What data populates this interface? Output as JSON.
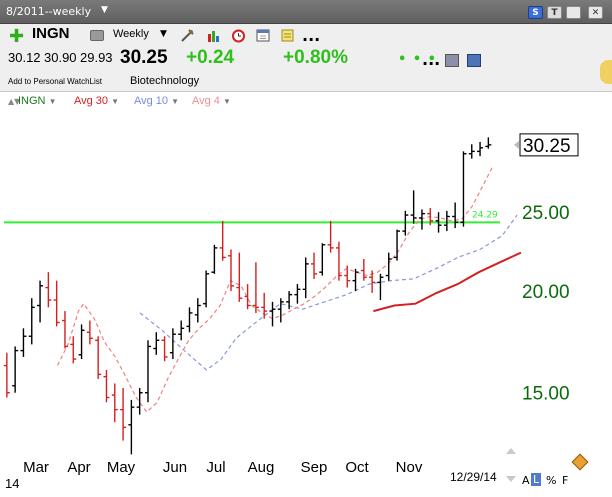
{
  "window": {
    "title": "8/2011--weekly"
  },
  "toolbar": {
    "symbol": "INGN",
    "period": "Weekly",
    "ellipsis": "...",
    "open": "30.12",
    "high": "30.90",
    "low": "29.93",
    "close": "30.25",
    "change": "+0.24",
    "change_pct": "+0.80%",
    "watchlist_link": "Add to Personal WatchList",
    "industry": "Biotechnology",
    "buttons": {
      "s": "S",
      "t": "T"
    }
  },
  "legend": {
    "symbol": "INGN",
    "avg30": "Avg 30",
    "avg10": "Avg 10",
    "avg4": "Avg 4"
  },
  "footer": {
    "a": "A",
    "l": "L",
    "pct": "%",
    "f": "F",
    "date": "12/29/14",
    "year": "14"
  },
  "colors": {
    "up_bar": "#000000",
    "down_bar": "#d42020",
    "avg30": "#d42020",
    "avg10": "#8a96e0",
    "avg4": "#f08080",
    "hline": "#33ee33",
    "axis_text": "#0b6b0b",
    "change": "#2fbf1e"
  },
  "chart_data": {
    "type": "ohlc",
    "price_label": "30.25",
    "yticks": [
      "25.00",
      "20.00",
      "15.00"
    ],
    "ytick_values": [
      25,
      20,
      15
    ],
    "ylim": [
      12.4,
      33.2
    ],
    "x_labels": [
      "Mar",
      "Apr",
      "May",
      "Jun",
      "Jul",
      "Aug",
      "Sep",
      "Oct",
      "Nov"
    ],
    "horizontal_line": {
      "value": 24.29,
      "label": "24.29"
    },
    "weeks": [
      {
        "o": 16.2,
        "h": 16.8,
        "l": 14.8,
        "c": 15.0,
        "dir": "down"
      },
      {
        "o": 15.3,
        "h": 17.1,
        "l": 15.0,
        "c": 16.9,
        "dir": "up"
      },
      {
        "o": 16.9,
        "h": 18.0,
        "l": 16.6,
        "c": 17.6,
        "dir": "up"
      },
      {
        "o": 17.6,
        "h": 19.6,
        "l": 17.2,
        "c": 19.1,
        "dir": "up"
      },
      {
        "o": 19.2,
        "h": 20.6,
        "l": 18.3,
        "c": 20.3,
        "dir": "up"
      },
      {
        "o": 20.2,
        "h": 21.1,
        "l": 19.1,
        "c": 19.5,
        "dir": "down"
      },
      {
        "o": 19.5,
        "h": 20.6,
        "l": 18.1,
        "c": 18.3,
        "dir": "down"
      },
      {
        "o": 18.4,
        "h": 18.9,
        "l": 17.0,
        "c": 17.1,
        "dir": "down"
      },
      {
        "o": 17.2,
        "h": 17.6,
        "l": 16.3,
        "c": 16.5,
        "dir": "down"
      },
      {
        "o": 16.7,
        "h": 18.2,
        "l": 16.5,
        "c": 17.9,
        "dir": "up"
      },
      {
        "o": 17.8,
        "h": 18.4,
        "l": 17.2,
        "c": 17.5,
        "dir": "down"
      },
      {
        "o": 17.4,
        "h": 17.6,
        "l": 15.6,
        "c": 15.8,
        "dir": "down"
      },
      {
        "o": 15.7,
        "h": 16.0,
        "l": 14.6,
        "c": 14.8,
        "dir": "down"
      },
      {
        "o": 14.9,
        "h": 15.4,
        "l": 13.8,
        "c": 14.3,
        "dir": "down"
      },
      {
        "o": 14.3,
        "h": 15.2,
        "l": 13.1,
        "c": 13.6,
        "dir": "down"
      },
      {
        "o": 13.7,
        "h": 14.7,
        "l": 12.6,
        "c": 14.4,
        "dir": "up"
      },
      {
        "o": 14.4,
        "h": 15.2,
        "l": 14.1,
        "c": 15.0,
        "dir": "up"
      },
      {
        "o": 15.0,
        "h": 17.4,
        "l": 14.6,
        "c": 17.1,
        "dir": "up"
      },
      {
        "o": 17.0,
        "h": 17.8,
        "l": 16.7,
        "c": 17.4,
        "dir": "up"
      },
      {
        "o": 17.4,
        "h": 17.6,
        "l": 16.4,
        "c": 16.6,
        "dir": "down"
      },
      {
        "o": 16.8,
        "h": 18.0,
        "l": 16.5,
        "c": 17.7,
        "dir": "up"
      },
      {
        "o": 17.7,
        "h": 18.4,
        "l": 17.4,
        "c": 18.0,
        "dir": "up"
      },
      {
        "o": 18.1,
        "h": 19.1,
        "l": 17.8,
        "c": 18.8,
        "dir": "up"
      },
      {
        "o": 18.7,
        "h": 19.6,
        "l": 18.3,
        "c": 19.2,
        "dir": "up"
      },
      {
        "o": 19.3,
        "h": 21.2,
        "l": 19.1,
        "c": 21.0,
        "dir": "up"
      },
      {
        "o": 21.1,
        "h": 22.8,
        "l": 21.0,
        "c": 22.6,
        "dir": "up"
      },
      {
        "o": 22.6,
        "h": 24.4,
        "l": 21.8,
        "c": 22.0,
        "dir": "down"
      },
      {
        "o": 22.1,
        "h": 22.5,
        "l": 20.0,
        "c": 20.3,
        "dir": "down"
      },
      {
        "o": 20.2,
        "h": 22.3,
        "l": 19.4,
        "c": 19.6,
        "dir": "down"
      },
      {
        "o": 19.7,
        "h": 20.4,
        "l": 19.0,
        "c": 19.2,
        "dir": "down"
      },
      {
        "o": 19.2,
        "h": 21.7,
        "l": 18.8,
        "c": 19.1,
        "dir": "down"
      },
      {
        "o": 19.1,
        "h": 19.9,
        "l": 18.5,
        "c": 18.9,
        "dir": "down"
      },
      {
        "o": 18.9,
        "h": 19.4,
        "l": 18.1,
        "c": 19.0,
        "dir": "up"
      },
      {
        "o": 19.0,
        "h": 19.6,
        "l": 18.3,
        "c": 19.4,
        "dir": "up"
      },
      {
        "o": 19.4,
        "h": 20.0,
        "l": 19.0,
        "c": 19.8,
        "dir": "up"
      },
      {
        "o": 19.8,
        "h": 20.4,
        "l": 19.3,
        "c": 20.1,
        "dir": "up"
      },
      {
        "o": 20.1,
        "h": 22.0,
        "l": 19.6,
        "c": 21.6,
        "dir": "up"
      },
      {
        "o": 21.6,
        "h": 22.3,
        "l": 20.7,
        "c": 21.0,
        "dir": "down"
      },
      {
        "o": 21.1,
        "h": 22.9,
        "l": 20.9,
        "c": 22.8,
        "dir": "up"
      },
      {
        "o": 22.8,
        "h": 24.4,
        "l": 22.3,
        "c": 22.6,
        "dir": "down"
      },
      {
        "o": 22.6,
        "h": 23.0,
        "l": 20.6,
        "c": 20.9,
        "dir": "down"
      },
      {
        "o": 20.9,
        "h": 21.5,
        "l": 20.2,
        "c": 20.6,
        "dir": "down"
      },
      {
        "o": 20.6,
        "h": 21.3,
        "l": 20.0,
        "c": 21.1,
        "dir": "up"
      },
      {
        "o": 21.2,
        "h": 21.9,
        "l": 20.6,
        "c": 20.8,
        "dir": "down"
      },
      {
        "o": 20.8,
        "h": 21.2,
        "l": 19.9,
        "c": 20.5,
        "dir": "down"
      },
      {
        "o": 20.5,
        "h": 21.0,
        "l": 19.5,
        "c": 20.8,
        "dir": "up"
      },
      {
        "o": 20.9,
        "h": 22.3,
        "l": 20.6,
        "c": 21.9,
        "dir": "up"
      },
      {
        "o": 22.0,
        "h": 23.8,
        "l": 21.8,
        "c": 23.7,
        "dir": "up"
      },
      {
        "o": 23.7,
        "h": 25.1,
        "l": 23.4,
        "c": 24.8,
        "dir": "up"
      },
      {
        "o": 24.8,
        "h": 26.6,
        "l": 24.2,
        "c": 24.6,
        "dir": "up"
      },
      {
        "o": 24.6,
        "h": 25.2,
        "l": 23.8,
        "c": 24.9,
        "dir": "up"
      },
      {
        "o": 24.9,
        "h": 25.3,
        "l": 24.1,
        "c": 24.4,
        "dir": "down"
      },
      {
        "o": 24.4,
        "h": 25.0,
        "l": 23.6,
        "c": 24.1,
        "dir": "up"
      },
      {
        "o": 24.1,
        "h": 25.1,
        "l": 23.7,
        "c": 24.7,
        "dir": "up"
      },
      {
        "o": 24.7,
        "h": 25.7,
        "l": 23.9,
        "c": 24.3,
        "dir": "up"
      },
      {
        "o": 24.3,
        "h": 29.7,
        "l": 24.0,
        "c": 29.5,
        "dir": "up"
      },
      {
        "o": 29.5,
        "h": 30.3,
        "l": 29.1,
        "c": 29.7,
        "dir": "up"
      },
      {
        "o": 29.7,
        "h": 30.5,
        "l": 29.3,
        "c": 30.0,
        "dir": "up"
      },
      {
        "o": 30.12,
        "h": 30.9,
        "l": 29.93,
        "c": 30.25,
        "dir": "up"
      }
    ],
    "avg30": [
      {
        "w": 45,
        "v": 18.9
      },
      {
        "w": 48,
        "v": 19.2
      },
      {
        "w": 51,
        "v": 19.3
      },
      {
        "w": 54,
        "v": 19.9
      },
      {
        "w": 57,
        "v": 20.4
      },
      {
        "w": 60,
        "v": 21.1
      },
      {
        "w": 63,
        "v": 21.7
      },
      {
        "w": 66,
        "v": 22.3
      }
    ],
    "avg10": [
      {
        "w": 15,
        "v": 18.8
      },
      {
        "w": 18,
        "v": 17.9
      },
      {
        "w": 21,
        "v": 16.9
      },
      {
        "w": 24,
        "v": 16.0
      },
      {
        "w": 26,
        "v": 16.5
      },
      {
        "w": 28,
        "v": 17.5
      },
      {
        "w": 31,
        "v": 18.4
      },
      {
        "w": 34,
        "v": 19.3
      },
      {
        "w": 37,
        "v": 19.0
      },
      {
        "w": 40,
        "v": 19.4
      },
      {
        "w": 43,
        "v": 19.8
      },
      {
        "w": 46,
        "v": 20.4
      },
      {
        "w": 49,
        "v": 20.6
      },
      {
        "w": 52,
        "v": 20.7
      },
      {
        "w": 55,
        "v": 21.3
      },
      {
        "w": 58,
        "v": 22.0
      },
      {
        "w": 61,
        "v": 22.5
      },
      {
        "w": 64,
        "v": 23.4
      },
      {
        "w": 66,
        "v": 24.8
      }
    ],
    "avg4": [
      {
        "w": 10,
        "v": 16.2
      },
      {
        "w": 12,
        "v": 17.2
      },
      {
        "w": 14,
        "v": 18.9
      },
      {
        "w": 15,
        "v": 19.3
      },
      {
        "w": 17,
        "v": 18.5
      },
      {
        "w": 19,
        "v": 17.3
      },
      {
        "w": 21,
        "v": 16.6
      },
      {
        "w": 23,
        "v": 15.7
      },
      {
        "w": 25,
        "v": 14.8
      },
      {
        "w": 27,
        "v": 14.2
      },
      {
        "w": 29,
        "v": 14.6
      },
      {
        "w": 31,
        "v": 15.6
      },
      {
        "w": 33,
        "v": 16.5
      },
      {
        "w": 35,
        "v": 17.4
      },
      {
        "w": 37,
        "v": 18.0
      },
      {
        "w": 39,
        "v": 18.5
      },
      {
        "w": 41,
        "v": 19.2
      },
      {
        "w": 43,
        "v": 20.6
      },
      {
        "w": 45,
        "v": 20.3
      },
      {
        "w": 47,
        "v": 19.2
      },
      {
        "w": 49,
        "v": 18.8
      },
      {
        "w": 51,
        "v": 18.5
      },
      {
        "w": 53,
        "v": 18.7
      },
      {
        "w": 55,
        "v": 19.0
      },
      {
        "w": 57,
        "v": 19.3
      },
      {
        "w": 59,
        "v": 19.7
      },
      {
        "w": 61,
        "v": 20.2
      },
      {
        "w": 63,
        "v": 20.8
      },
      {
        "w": 65,
        "v": 21.3
      },
      {
        "w": 67,
        "v": 21.1
      },
      {
        "w": 69,
        "v": 20.9
      },
      {
        "w": 71,
        "v": 21.1
      },
      {
        "w": 73,
        "v": 21.6
      },
      {
        "w": 75,
        "v": 22.4
      },
      {
        "w": 77,
        "v": 23.6
      },
      {
        "w": 79,
        "v": 24.5
      },
      {
        "w": 81,
        "v": 24.7
      },
      {
        "w": 83,
        "v": 24.6
      },
      {
        "w": 85,
        "v": 24.4
      },
      {
        "w": 87,
        "v": 24.5
      },
      {
        "w": 89,
        "v": 25.4
      },
      {
        "w": 91,
        "v": 26.9
      },
      {
        "w": 93,
        "v": 28.5
      }
    ]
  }
}
